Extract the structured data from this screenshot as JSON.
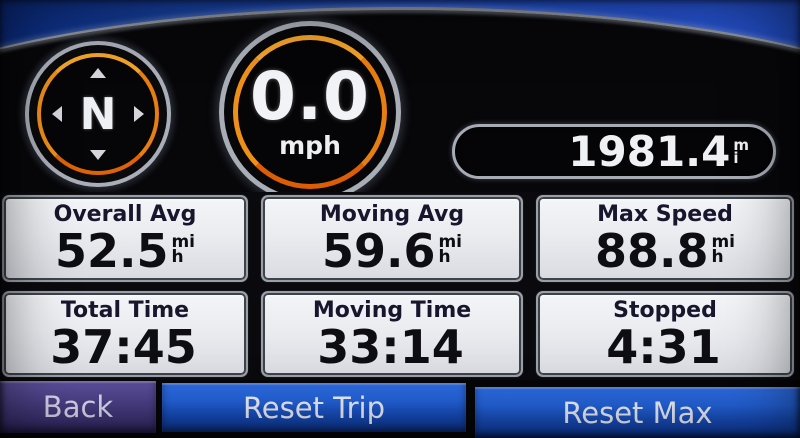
{
  "gauges": {
    "compass": {
      "heading": "N"
    },
    "speed": {
      "value": "0.0",
      "unit": "mph"
    },
    "odometer": {
      "value": "1981.4",
      "unit_top": "m",
      "unit_bottom": "i"
    }
  },
  "cells": [
    {
      "label": "Overall Avg",
      "value": "52.5",
      "unit_top": "mi",
      "unit_bottom": "h"
    },
    {
      "label": "Moving Avg",
      "value": "59.6",
      "unit_top": "mi",
      "unit_bottom": "h"
    },
    {
      "label": "Max Speed",
      "value": "88.8",
      "unit_top": "mi",
      "unit_bottom": "h"
    },
    {
      "label": "Total Time",
      "value": "37:45",
      "unit_top": "",
      "unit_bottom": ""
    },
    {
      "label": "Moving Time",
      "value": "33:14",
      "unit_top": "",
      "unit_bottom": ""
    },
    {
      "label": "Stopped",
      "value": "4:31",
      "unit_top": "",
      "unit_bottom": ""
    }
  ],
  "buttons": {
    "back": "Back",
    "reset_trip": "Reset Trip",
    "reset_max": "Reset Max"
  },
  "colors": {
    "background_blue": "#2050cc",
    "panel_black": "#07070a",
    "gauge_ring_orange": "#ee8c14",
    "gauge_ring_silver": "#a8adb6",
    "cell_background": "#eaecf0",
    "cell_text": "#0d0d12",
    "button_blue": "#1e55c8",
    "button_purple": "#4c4188",
    "button_text": "#eceef8"
  }
}
